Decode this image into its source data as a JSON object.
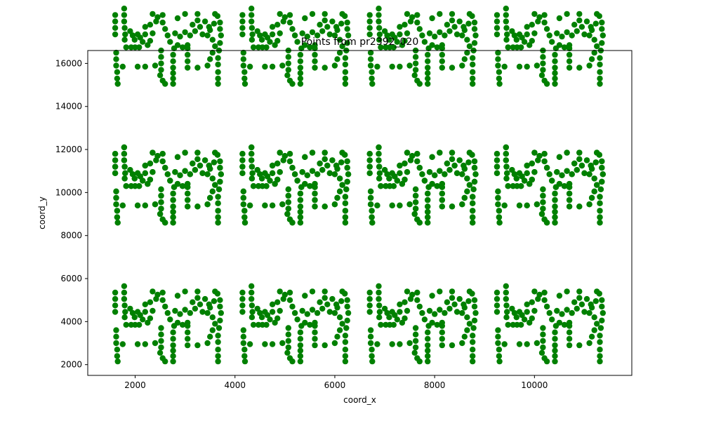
{
  "chart_data": {
    "type": "scatter",
    "title": "Points from pr2392_020",
    "xlabel": "coord_x",
    "ylabel": "coord_y",
    "xlim": [
      1050,
      11950
    ],
    "ylim": [
      1500,
      16600
    ],
    "xticks": [
      2000,
      4000,
      6000,
      8000,
      10000
    ],
    "xtick_labels": [
      "2000",
      "4000",
      "6000",
      "8000",
      "10000"
    ],
    "yticks": [
      2000,
      4000,
      6000,
      8000,
      10000,
      12000,
      14000,
      16000
    ],
    "ytick_labels": [
      "2000",
      "4000",
      "6000",
      "8000",
      "10000",
      "12000",
      "14000",
      "16000"
    ],
    "grid": false,
    "marker_color": "#008000",
    "repeat_offsets_x": [
      0,
      2550,
      5100,
      7650
    ],
    "repeat_offsets_y": [
      0,
      6450
    ],
    "cell_points": [
      [
        1600,
        5350
      ],
      [
        1600,
        5050
      ],
      [
        1600,
        4750
      ],
      [
        1600,
        4450
      ],
      [
        1620,
        3600
      ],
      [
        1620,
        3300
      ],
      [
        1620,
        3000
      ],
      [
        1640,
        2700
      ],
      [
        1640,
        2400
      ],
      [
        1650,
        2150
      ],
      [
        1780,
        5650
      ],
      [
        1780,
        5350
      ],
      [
        1780,
        5050
      ],
      [
        1790,
        4750
      ],
      [
        1800,
        4450
      ],
      [
        1790,
        4200
      ],
      [
        1820,
        3850
      ],
      [
        1750,
        2950
      ],
      [
        1900,
        4600
      ],
      [
        1950,
        4400
      ],
      [
        1990,
        4200
      ],
      [
        2050,
        4450
      ],
      [
        2100,
        4300
      ],
      [
        2150,
        4100
      ],
      [
        2200,
        4450
      ],
      [
        2250,
        3950
      ],
      [
        2300,
        4150
      ],
      [
        2350,
        4500
      ],
      [
        1920,
        3850
      ],
      [
        2000,
        3850
      ],
      [
        2080,
        3850
      ],
      [
        2050,
        2950
      ],
      [
        2200,
        2950
      ],
      [
        2200,
        4800
      ],
      [
        2300,
        4900
      ],
      [
        2420,
        5050
      ],
      [
        2350,
        5400
      ],
      [
        2450,
        5250
      ],
      [
        2550,
        5350
      ],
      [
        2550,
        5000
      ],
      [
        2600,
        4700
      ],
      [
        2650,
        4400
      ],
      [
        2700,
        4100
      ],
      [
        2520,
        3700
      ],
      [
        2520,
        3400
      ],
      [
        2520,
        3100
      ],
      [
        2520,
        2800
      ],
      [
        2500,
        2550
      ],
      [
        2550,
        2300
      ],
      [
        2600,
        2150
      ],
      [
        2760,
        2900
      ],
      [
        2760,
        2650
      ],
      [
        2760,
        2400
      ],
      [
        2760,
        2150
      ],
      [
        2760,
        3200
      ],
      [
        2760,
        3500
      ],
      [
        2780,
        3800
      ],
      [
        2850,
        3950
      ],
      [
        2950,
        3850
      ],
      [
        3050,
        3950
      ],
      [
        2800,
        4500
      ],
      [
        2900,
        4350
      ],
      [
        3000,
        4550
      ],
      [
        3100,
        4400
      ],
      [
        3200,
        4600
      ],
      [
        3150,
        4900
      ],
      [
        3250,
        5100
      ],
      [
        3300,
        4800
      ],
      [
        3400,
        5050
      ],
      [
        3350,
        4450
      ],
      [
        3050,
        2900
      ],
      [
        3050,
        3200
      ],
      [
        3050,
        3500
      ],
      [
        3050,
        3800
      ],
      [
        3250,
        2900
      ],
      [
        3450,
        3000
      ],
      [
        3500,
        3300
      ],
      [
        3550,
        3600
      ],
      [
        3600,
        3900
      ],
      [
        3550,
        4200
      ],
      [
        3450,
        4400
      ],
      [
        3500,
        4650
      ],
      [
        3580,
        4950
      ],
      [
        3650,
        5300
      ],
      [
        3700,
        5000
      ],
      [
        3700,
        4700
      ],
      [
        3720,
        4400
      ],
      [
        3700,
        4050
      ],
      [
        3680,
        3700
      ],
      [
        3660,
        3350
      ],
      [
        3660,
        3050
      ],
      [
        3660,
        2700
      ],
      [
        3660,
        2400
      ],
      [
        3660,
        2150
      ],
      [
        3480,
        4800
      ],
      [
        3600,
        5400
      ],
      [
        3250,
        5400
      ],
      [
        3000,
        5400
      ],
      [
        2850,
        5200
      ],
      [
        2400,
        3000
      ],
      [
        1600,
        11800
      ],
      [
        1600,
        11500
      ],
      [
        1600,
        11200
      ],
      [
        1600,
        10900
      ],
      [
        1620,
        10050
      ],
      [
        1620,
        9750
      ],
      [
        1620,
        9450
      ],
      [
        1640,
        9150
      ],
      [
        1640,
        8850
      ],
      [
        1650,
        8600
      ],
      [
        1780,
        12100
      ],
      [
        1780,
        11800
      ],
      [
        1780,
        11500
      ],
      [
        1790,
        11200
      ],
      [
        1800,
        10900
      ],
      [
        1790,
        10650
      ],
      [
        1820,
        10300
      ],
      [
        1750,
        9400
      ],
      [
        1900,
        11050
      ],
      [
        1950,
        10850
      ],
      [
        1990,
        10650
      ],
      [
        2050,
        10900
      ],
      [
        2100,
        10750
      ],
      [
        2150,
        10550
      ],
      [
        2200,
        10900
      ],
      [
        2250,
        10400
      ],
      [
        2300,
        10600
      ],
      [
        2350,
        10950
      ],
      [
        1920,
        10300
      ],
      [
        2000,
        10300
      ],
      [
        2080,
        10300
      ],
      [
        2050,
        9400
      ],
      [
        2200,
        9400
      ],
      [
        2200,
        11250
      ],
      [
        2300,
        11350
      ],
      [
        2420,
        11500
      ],
      [
        2350,
        11850
      ],
      [
        2450,
        11700
      ],
      [
        2550,
        11800
      ],
      [
        2550,
        11450
      ],
      [
        2600,
        11150
      ],
      [
        2650,
        10850
      ],
      [
        2700,
        10550
      ],
      [
        2520,
        10150
      ],
      [
        2520,
        9850
      ],
      [
        2520,
        9550
      ],
      [
        2520,
        9250
      ],
      [
        2500,
        9000
      ],
      [
        2550,
        8750
      ],
      [
        2600,
        8600
      ],
      [
        2760,
        9350
      ],
      [
        2760,
        9100
      ],
      [
        2760,
        8850
      ],
      [
        2760,
        8600
      ],
      [
        2760,
        9650
      ],
      [
        2760,
        9950
      ],
      [
        2780,
        10250
      ],
      [
        2850,
        10400
      ],
      [
        2950,
        10300
      ],
      [
        3050,
        10400
      ],
      [
        2800,
        10950
      ],
      [
        2900,
        10800
      ],
      [
        3000,
        11000
      ],
      [
        3100,
        10850
      ],
      [
        3200,
        11050
      ],
      [
        3150,
        11350
      ],
      [
        3250,
        11550
      ],
      [
        3300,
        11250
      ],
      [
        3400,
        11500
      ],
      [
        3350,
        10900
      ],
      [
        3050,
        9350
      ],
      [
        3050,
        9650
      ],
      [
        3050,
        9950
      ],
      [
        3050,
        10250
      ],
      [
        3250,
        9350
      ],
      [
        3450,
        9450
      ],
      [
        3500,
        9750
      ],
      [
        3550,
        10050
      ],
      [
        3600,
        10350
      ],
      [
        3550,
        10650
      ],
      [
        3450,
        10850
      ],
      [
        3500,
        11100
      ],
      [
        3580,
        11400
      ],
      [
        3650,
        11750
      ],
      [
        3700,
        11450
      ],
      [
        3700,
        11150
      ],
      [
        3720,
        10850
      ],
      [
        3700,
        10500
      ],
      [
        3680,
        10150
      ],
      [
        3660,
        9800
      ],
      [
        3660,
        9500
      ],
      [
        3660,
        9150
      ],
      [
        3660,
        8850
      ],
      [
        3660,
        8600
      ],
      [
        3480,
        11250
      ],
      [
        3600,
        11850
      ],
      [
        3250,
        11850
      ],
      [
        3000,
        11850
      ],
      [
        2850,
        11650
      ],
      [
        2400,
        9450
      ]
    ]
  }
}
